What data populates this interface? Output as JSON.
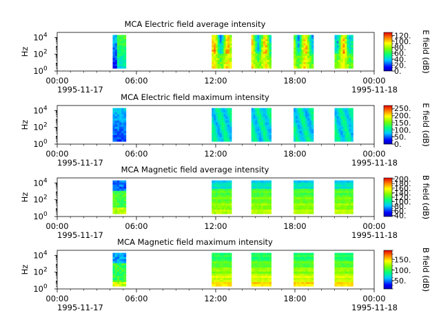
{
  "figure": {
    "x_ticks": [
      "00:00",
      "06:00",
      "12:00",
      "18:00",
      "00:00"
    ],
    "start_date": "1995-11-17",
    "end_date": "1995-11-18"
  },
  "chart_data": [
    {
      "type": "heatmap",
      "title": "MCA  Electric field average intensity",
      "ylabel": "Hz",
      "ylim_log10": [
        0,
        4.6
      ],
      "ytick_exponents": [
        "4",
        "2",
        "0"
      ],
      "xlim_hours": [
        0,
        24
      ],
      "colorbar": {
        "label": "E field (dB)",
        "ticks": [
          "120.",
          "100.",
          "80.",
          "60.",
          "40.",
          "20.",
          "0."
        ],
        "range": [
          0,
          130
        ]
      },
      "segments": [
        {
          "start_hour": 4.2,
          "end_hour": 5.2
        },
        {
          "start_hour": 11.7,
          "end_hour": 13.2
        },
        {
          "start_hour": 14.7,
          "end_hour": 16.2
        },
        {
          "start_hour": 17.9,
          "end_hour": 19.4
        },
        {
          "start_hour": 21.0,
          "end_hour": 22.4
        }
      ]
    },
    {
      "type": "heatmap",
      "title": "MCA  Electric field maximum intensity",
      "ylabel": "Hz",
      "ylim_log10": [
        0,
        4.6
      ],
      "ytick_exponents": [
        "4",
        "2",
        "0"
      ],
      "xlim_hours": [
        0,
        24
      ],
      "colorbar": {
        "label": "E field (dB)",
        "ticks": [
          "250.",
          "200.",
          "150.",
          "100.",
          "50.",
          "0."
        ],
        "range": [
          0,
          270
        ]
      },
      "segments": [
        {
          "start_hour": 4.2,
          "end_hour": 5.2
        },
        {
          "start_hour": 11.7,
          "end_hour": 13.2
        },
        {
          "start_hour": 14.7,
          "end_hour": 16.2
        },
        {
          "start_hour": 17.9,
          "end_hour": 19.4
        },
        {
          "start_hour": 21.0,
          "end_hour": 22.4
        }
      ]
    },
    {
      "type": "heatmap",
      "title": "MCA  Magnetic field average intensity",
      "ylabel": "Hz",
      "ylim_log10": [
        0,
        4.6
      ],
      "ytick_exponents": [
        "4",
        "2",
        "0"
      ],
      "xlim_hours": [
        0,
        24
      ],
      "colorbar": {
        "label": "B field (dB)",
        "ticks": [
          "200.",
          "180.",
          "160.",
          "140.",
          "120.",
          "100.",
          "80.",
          "60.",
          "40."
        ],
        "range": [
          35,
          205
        ]
      },
      "segments": [
        {
          "start_hour": 4.2,
          "end_hour": 5.2
        },
        {
          "start_hour": 11.7,
          "end_hour": 13.2
        },
        {
          "start_hour": 14.7,
          "end_hour": 16.2
        },
        {
          "start_hour": 17.9,
          "end_hour": 19.4
        },
        {
          "start_hour": 21.0,
          "end_hour": 22.4
        }
      ]
    },
    {
      "type": "heatmap",
      "title": "MCA  Magnetic field maximum intensity",
      "ylabel": "Hz",
      "ylim_log10": [
        0,
        4.6
      ],
      "ytick_exponents": [
        "4",
        "2",
        "0"
      ],
      "xlim_hours": [
        0,
        24
      ],
      "colorbar": {
        "label": "B field (dB)",
        "ticks": [
          "150.",
          "100.",
          "50."
        ],
        "range": [
          10,
          195
        ]
      },
      "segments": [
        {
          "start_hour": 4.2,
          "end_hour": 5.2
        },
        {
          "start_hour": 11.7,
          "end_hour": 13.2
        },
        {
          "start_hour": 14.7,
          "end_hour": 16.2
        },
        {
          "start_hour": 17.9,
          "end_hour": 19.4
        },
        {
          "start_hour": 21.0,
          "end_hour": 22.4
        }
      ]
    }
  ]
}
